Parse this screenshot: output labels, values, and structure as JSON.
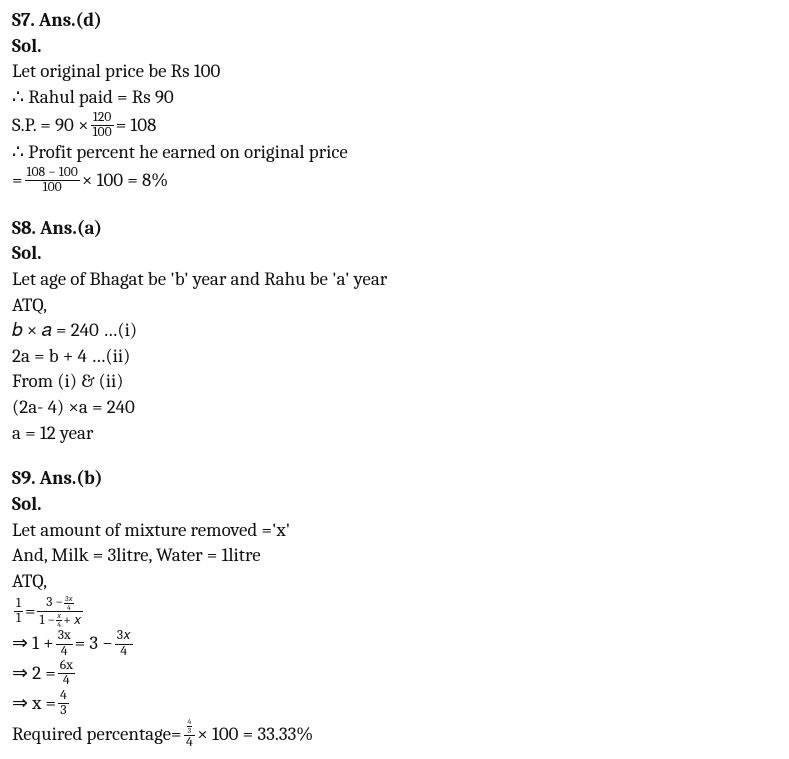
{
  "s7": {
    "heading": "S7. Ans.(d)",
    "sol": "Sol.",
    "l1": "Let original price be Rs 100",
    "l2": "∴ Rahul paid = Rs 90",
    "l3_pre": " S.P. = 90 × ",
    "l3_num": "120",
    "l3_den": "100",
    "l3_post": " = 108",
    "l4": "∴ Profit percent he earned on original price",
    "l5_pre": "= ",
    "l5_num": "108 − 100",
    "l5_den": "100",
    "l5_post": " × 100 = 8%"
  },
  "s8": {
    "heading": "S8. Ans.(a)",
    "sol": "Sol.",
    "l1": "Let age of Bhagat be 'b' year and Rahu be 'a' year",
    "l2": "ATQ,",
    "l3": "𝑏 × 𝑎 = 240               …(i)",
    "l4": "2a = b + 4                   …(ii)",
    "l5": "From (i) & (ii)",
    "l6": "(2a- 4) ×a = 240",
    "l7": "a = 12 year"
  },
  "s9": {
    "heading": "S9. Ans.(b)",
    "sol": "Sol.",
    "l1": "Let amount of mixture removed ='x'",
    "l2": "And, Milk = 3litre, Water = 1litre",
    "l3": "ATQ,",
    "eq1_lhs_num": "1",
    "eq1_lhs_den": "1",
    "eq1_eq": " = ",
    "eq1_rhs_num_a": "3 − ",
    "eq1_rhs_num_num": "3𝑥",
    "eq1_rhs_num_den": "4",
    "eq1_rhs_den_a": "1 − ",
    "eq1_rhs_den_num": "𝑥",
    "eq1_rhs_den_den": "4",
    "eq1_rhs_den_b": " + 𝑥",
    "eq2_pre": "⇒ 1 + ",
    "eq2_lnum": "3x",
    "eq2_lden": "4",
    "eq2_mid": " = 3 − ",
    "eq2_rnum": "3𝑥",
    "eq2_rden": "4",
    "eq3_pre": "⇒ 2 = ",
    "eq3_num": "6x",
    "eq3_den": "4",
    "eq4_pre": "⇒ x = ",
    "eq4_num": "4",
    "eq4_den": "3",
    "eq5_pre": "Required percentage= ",
    "eq5_top_num": "4",
    "eq5_top_den": "3",
    "eq5_bot": "4",
    "eq5_post": " × 100 = 33.33%"
  }
}
